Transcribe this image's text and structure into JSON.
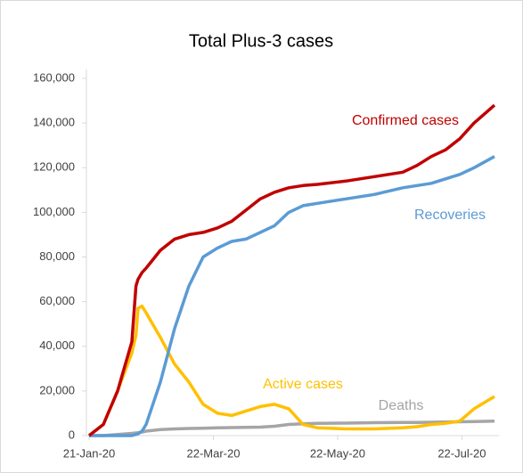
{
  "chart_data": {
    "type": "line",
    "title": "Total Plus-3 cases",
    "x": [
      "21-Jan-20",
      "28-Jan-20",
      "4-Feb-20",
      "11-Feb-20",
      "13-Feb-20",
      "14-Feb-20",
      "16-Feb-20",
      "18-Feb-20",
      "25-Feb-20",
      "3-Mar-20",
      "10-Mar-20",
      "17-Mar-20",
      "24-Mar-20",
      "31-Mar-20",
      "7-Apr-20",
      "14-Apr-20",
      "21-Apr-20",
      "28-Apr-20",
      "5-May-20",
      "12-May-20",
      "26-May-20",
      "9-Jun-20",
      "23-Jun-20",
      "30-Jun-20",
      "7-Jul-20",
      "14-Jul-20",
      "21-Jul-20",
      "28-Jul-20",
      "7-Aug-20"
    ],
    "series": [
      {
        "name": "Confirmed cases",
        "color": "#c00000",
        "values": [
          0,
          5000,
          20000,
          42000,
          67000,
          70000,
          73000,
          75000,
          83000,
          88000,
          90000,
          91000,
          93000,
          96000,
          101000,
          106000,
          109000,
          111000,
          112000,
          112500,
          114000,
          116000,
          118000,
          121000,
          125000,
          128000,
          133000,
          140000,
          148000
        ]
      },
      {
        "name": "Recoveries",
        "color": "#5b9bd5",
        "values": [
          0,
          0,
          0,
          0,
          500,
          800,
          2000,
          5000,
          24000,
          48000,
          67000,
          80000,
          84000,
          87000,
          88000,
          91000,
          94000,
          100000,
          103000,
          104000,
          106000,
          108000,
          111000,
          112000,
          113000,
          115000,
          117000,
          120000,
          125000
        ]
      },
      {
        "name": "Active cases",
        "color": "#ffc000",
        "values": [
          0,
          5000,
          20000,
          37000,
          45000,
          57000,
          58000,
          55000,
          44000,
          32000,
          24000,
          14000,
          10000,
          9000,
          11000,
          13000,
          14000,
          12000,
          5000,
          3500,
          3000,
          3000,
          3500,
          4000,
          5000,
          5500,
          6500,
          12000,
          17500
        ]
      },
      {
        "name": "Deaths",
        "color": "#a5a5a5",
        "values": [
          0,
          0,
          500,
          1000,
          1200,
          1300,
          1600,
          2000,
          2700,
          3000,
          3200,
          3300,
          3500,
          3600,
          3700,
          3800,
          4200,
          5000,
          5300,
          5500,
          5600,
          5800,
          5900,
          5900,
          6000,
          6100,
          6200,
          6300,
          6500
        ]
      }
    ],
    "xlim": [
      "21-Jan-20",
      "7-Aug-20"
    ],
    "xticks": [
      "21-Jan-20",
      "22-Mar-20",
      "22-May-20",
      "22-Jul-20"
    ],
    "ylim": [
      0,
      160000
    ],
    "yticks": [
      0,
      {
        "value": 20000,
        "label": "20,000"
      },
      {
        "value": 40000,
        "label": "40,000"
      },
      {
        "value": 60000,
        "label": "60,000"
      },
      {
        "value": 80000,
        "label": "80,000"
      },
      {
        "value": 100000,
        "label": "100,000"
      },
      {
        "value": 120000,
        "label": "120,000"
      },
      {
        "value": 140000,
        "label": "140,000"
      },
      {
        "value": 160000,
        "label": "160,000"
      }
    ],
    "grid": false
  }
}
